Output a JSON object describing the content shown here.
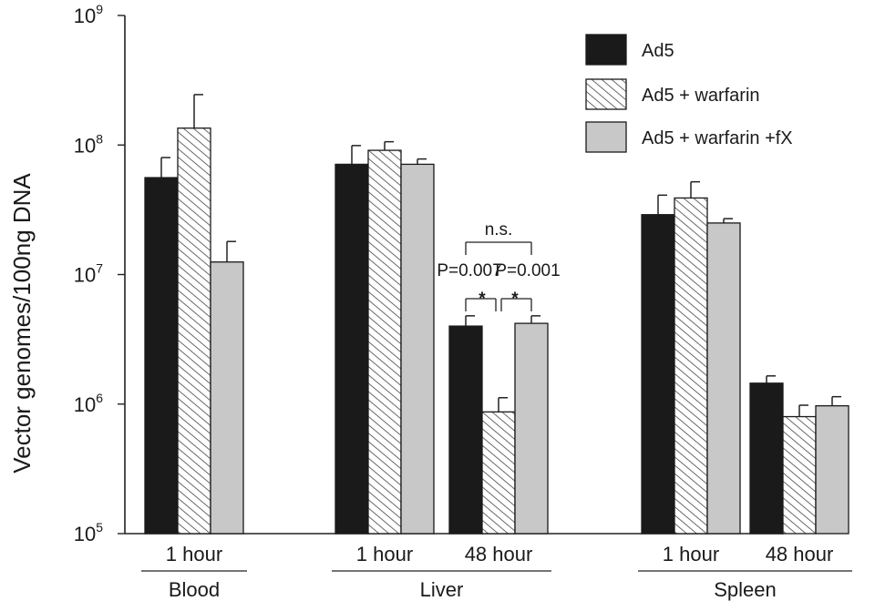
{
  "chart_data": {
    "type": "bar",
    "ylabel": "Vector genomes/100ng DNA",
    "yscale": "log",
    "ylim": [
      100000,
      1000000000
    ],
    "yticks": [
      {
        "value": 100000,
        "base": "10",
        "exp": "5"
      },
      {
        "value": 1000000,
        "base": "10",
        "exp": "6"
      },
      {
        "value": 10000000,
        "base": "10",
        "exp": "7"
      },
      {
        "value": 100000000,
        "base": "10",
        "exp": "8"
      },
      {
        "value": 1000000000,
        "base": "10",
        "exp": "9"
      }
    ],
    "series": [
      {
        "name": "Ad5",
        "color": "#1a1a1a",
        "pattern": "solid"
      },
      {
        "name": "Ad5 + warfarin",
        "color": "#555555",
        "pattern": "hatched"
      },
      {
        "name": "Ad5 + warfarin +fX",
        "color": "#c8c8c8",
        "pattern": "solid"
      }
    ],
    "groups": [
      {
        "tissue": "Blood",
        "time": "1 hour",
        "values": [
          56000000,
          135000000,
          12500000
        ],
        "errors": [
          80000000,
          245000000,
          18000000
        ]
      },
      {
        "tissue": "Liver",
        "time": "1 hour",
        "values": [
          71000000,
          91000000,
          71000000
        ],
        "errors": [
          99000000,
          106000000,
          78000000
        ]
      },
      {
        "tissue": "Liver",
        "time": "48 hour",
        "values": [
          4000000,
          870000,
          4200000
        ],
        "errors": [
          4800000,
          1120000,
          4800000
        ]
      },
      {
        "tissue": "Spleen",
        "time": "1 hour",
        "values": [
          29000000,
          39000000,
          25000000
        ],
        "errors": [
          41000000,
          52000000,
          27000000
        ]
      },
      {
        "tissue": "Spleen",
        "time": "48 hour",
        "values": [
          1450000,
          800000,
          970000
        ],
        "errors": [
          1650000,
          980000,
          1140000
        ]
      }
    ],
    "tissues": [
      "Blood",
      "Liver",
      "Spleen"
    ],
    "annotations": {
      "ns": "n.s.",
      "p1": "P=0.007",
      "p2": "P=0.001",
      "star": "*"
    },
    "legend": {
      "position": "top-right"
    }
  }
}
